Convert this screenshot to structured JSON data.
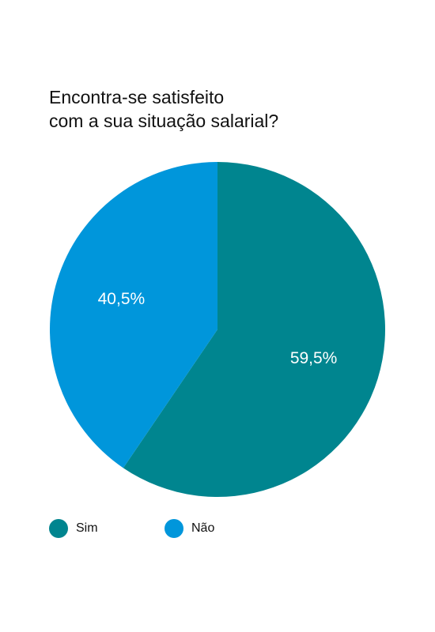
{
  "chart_data": {
    "type": "pie",
    "title_lines": [
      "Encontra-se satisfeito",
      "com a sua situação salarial?"
    ],
    "slices": [
      {
        "label": "Sim",
        "value": 59.5,
        "display": "59,5%",
        "color": "#00858F"
      },
      {
        "label": "Não",
        "value": 40.5,
        "display": "40,5%",
        "color": "#0096DB"
      }
    ],
    "legend": {
      "position": "bottom-left",
      "items": [
        {
          "label": "Sim",
          "color": "#00858F"
        },
        {
          "label": "Não",
          "color": "#0096DB"
        }
      ]
    },
    "label_color": "#FFFFFF",
    "background": "#FFFFFF"
  }
}
